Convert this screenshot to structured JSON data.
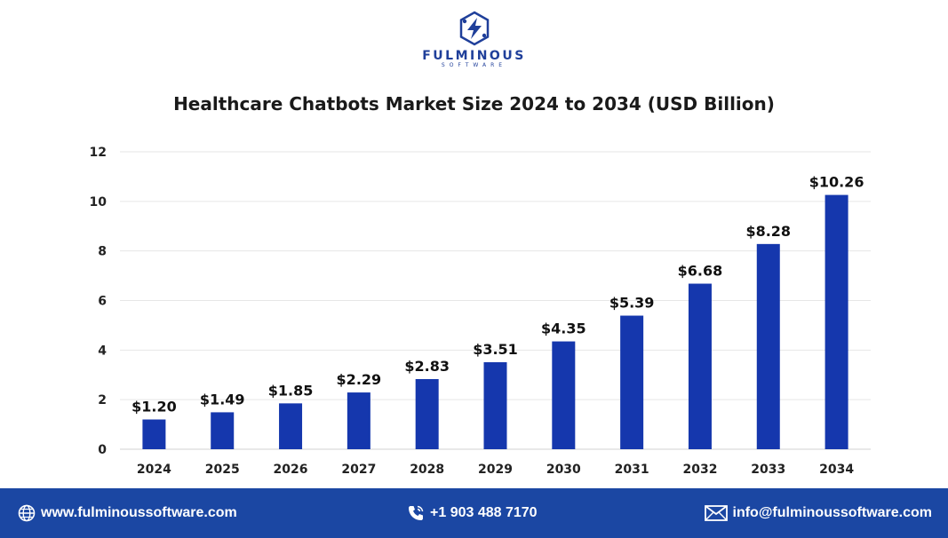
{
  "brand": {
    "name": "FULMINOUS",
    "tagline": "SOFTWARE",
    "logo_icon": "hexagon-bolt-icon"
  },
  "colors": {
    "bar": "#1537ad",
    "brand": "#1f3f9a",
    "footer": "#1b47a3",
    "grid": "#e6e6e6"
  },
  "chart_data": {
    "type": "bar",
    "title": "Healthcare Chatbots Market Size 2024 to 2034 (USD Billion)",
    "categories": [
      "2024",
      "2025",
      "2026",
      "2027",
      "2028",
      "2029",
      "2030",
      "2031",
      "2032",
      "2033",
      "2034"
    ],
    "values": [
      1.2,
      1.49,
      1.85,
      2.29,
      2.83,
      3.51,
      4.35,
      5.39,
      6.68,
      8.28,
      10.26
    ],
    "data_labels": [
      "$1.20",
      "$1.49",
      "$1.85",
      "$2.29",
      "$2.83",
      "$3.51",
      "$4.35",
      "$5.39",
      "$6.68",
      "$8.28",
      "$10.26"
    ],
    "yticks": [
      "0",
      "2",
      "4",
      "6",
      "8",
      "10",
      "12"
    ],
    "ylim": [
      0,
      12
    ],
    "grid": true,
    "legend": false,
    "xlabel": "",
    "ylabel": ""
  },
  "footer": {
    "website": "www.fulminoussoftware.com",
    "phone": "+1 903 488 7170",
    "email": "info@fulminoussoftware.com",
    "icons": [
      "globe-icon",
      "phone-icon",
      "mail-icon"
    ]
  }
}
